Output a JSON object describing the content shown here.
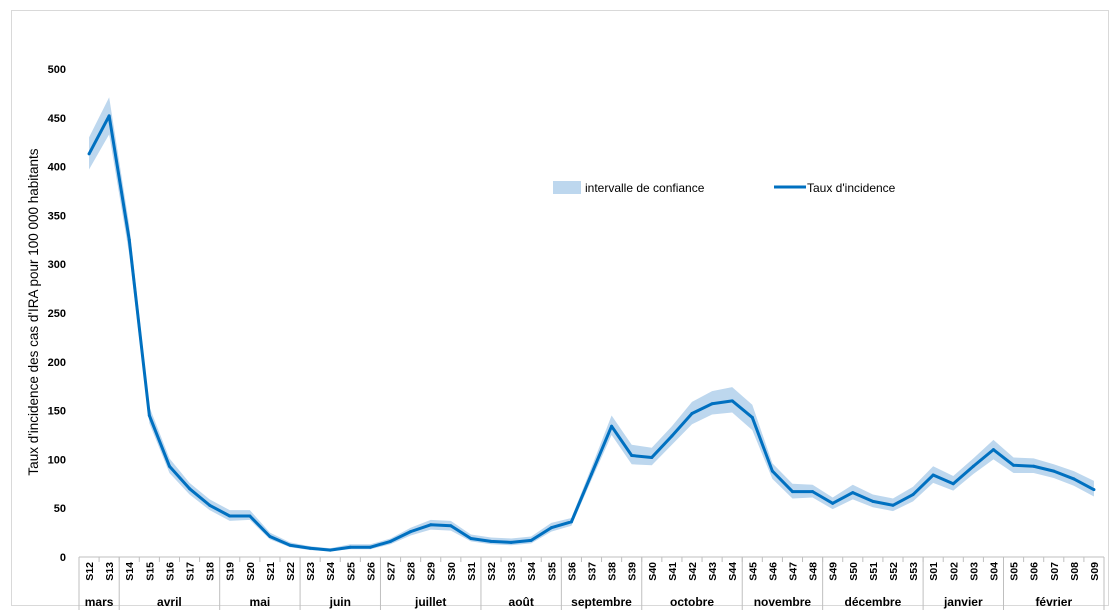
{
  "chart_data": {
    "type": "area",
    "title": "",
    "xlabel": "",
    "ylabel": "Taux d'incidence des cas d'IRA pour 100 000 habitants",
    "ylim": [
      0,
      500
    ],
    "yticks": [
      0,
      50,
      100,
      150,
      200,
      250,
      300,
      350,
      400,
      450,
      500
    ],
    "grid": false,
    "legend_position": "top-right",
    "colors": {
      "line": "#0070c0",
      "band": "#bdd7ee"
    },
    "categories": [
      "S12",
      "S13",
      "S14",
      "S15",
      "S16",
      "S17",
      "S18",
      "S19",
      "S20",
      "S21",
      "S22",
      "S23",
      "S24",
      "S25",
      "S26",
      "S27",
      "S28",
      "S29",
      "S30",
      "S31",
      "S32",
      "S33",
      "S34",
      "S35",
      "S36",
      "S37",
      "S38",
      "S39",
      "S40",
      "S41",
      "S42",
      "S43",
      "S44",
      "S45",
      "S46",
      "S47",
      "S48",
      "S49",
      "S50",
      "S51",
      "S52",
      "S53",
      "S01",
      "S02",
      "S03",
      "S04",
      "S05",
      "S06",
      "S07",
      "S08",
      "S09"
    ],
    "months": [
      {
        "label": "mars",
        "start": 0,
        "count": 2
      },
      {
        "label": "avril",
        "start": 2,
        "count": 5
      },
      {
        "label": "mai",
        "start": 7,
        "count": 4
      },
      {
        "label": "juin",
        "start": 11,
        "count": 4
      },
      {
        "label": "juillet",
        "start": 15,
        "count": 5
      },
      {
        "label": "août",
        "start": 20,
        "count": 4
      },
      {
        "label": "septembre",
        "start": 24,
        "count": 4
      },
      {
        "label": "octobre",
        "start": 28,
        "count": 5
      },
      {
        "label": "novembre",
        "start": 33,
        "count": 4
      },
      {
        "label": "décembre",
        "start": 37,
        "count": 5
      },
      {
        "label": "janvier",
        "start": 42,
        "count": 4
      },
      {
        "label": "février",
        "start": 46,
        "count": 5
      }
    ],
    "series": [
      {
        "name": "Taux d'incidence",
        "values": [
          413,
          452,
          325,
          145,
          93,
          70,
          53,
          42,
          42,
          21,
          12,
          9,
          7,
          10,
          10,
          16,
          26,
          33,
          32,
          19,
          16,
          15,
          17,
          30,
          36,
          85,
          134,
          104,
          102,
          124,
          147,
          157,
          160,
          143,
          88,
          67,
          67,
          55,
          66,
          57,
          53,
          64,
          84,
          75,
          93,
          110,
          94,
          93,
          88,
          80,
          69
        ]
      },
      {
        "name": "intervalle de confiance",
        "lower": [
          397,
          433,
          310,
          137,
          86,
          64,
          48,
          37,
          38,
          18,
          10,
          7,
          6,
          8,
          8,
          13,
          22,
          28,
          27,
          16,
          13,
          12,
          14,
          26,
          32,
          79,
          125,
          95,
          94,
          115,
          136,
          146,
          148,
          130,
          80,
          60,
          61,
          49,
          59,
          51,
          47,
          57,
          76,
          68,
          85,
          100,
          86,
          86,
          81,
          73,
          62
        ],
        "upper": [
          430,
          471,
          340,
          154,
          101,
          76,
          59,
          48,
          48,
          25,
          15,
          11,
          9,
          13,
          13,
          19,
          30,
          38,
          37,
          23,
          20,
          19,
          21,
          35,
          40,
          92,
          145,
          115,
          112,
          134,
          159,
          170,
          174,
          156,
          96,
          75,
          74,
          61,
          74,
          64,
          60,
          72,
          93,
          83,
          101,
          120,
          102,
          101,
          95,
          88,
          78
        ]
      }
    ]
  }
}
